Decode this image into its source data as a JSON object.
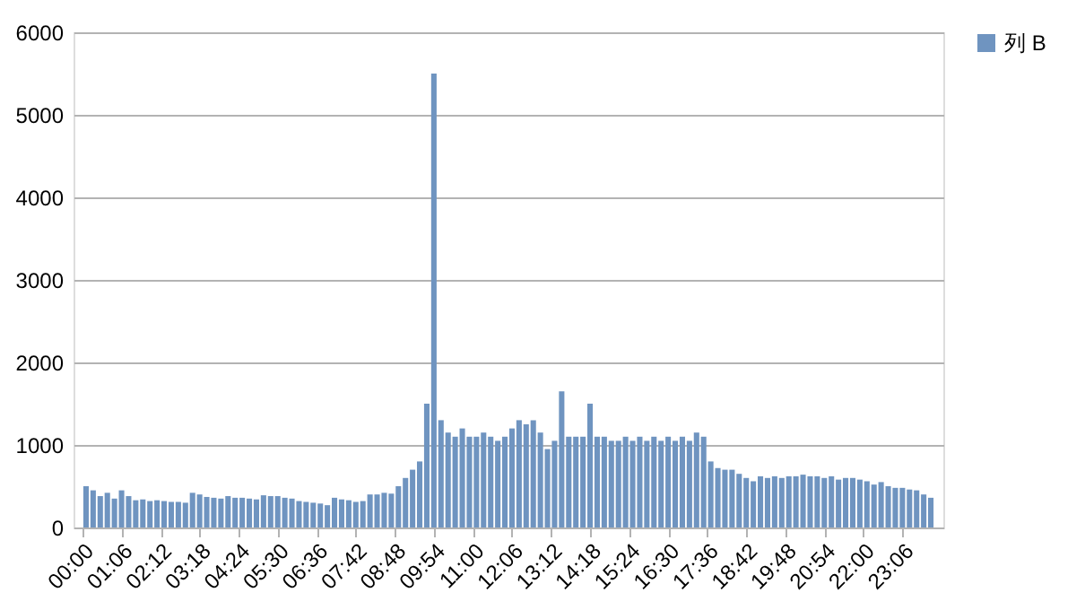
{
  "chart_data": {
    "type": "bar",
    "x": [
      0.1,
      0.3,
      0.5,
      0.7,
      0.9,
      1.1,
      1.3,
      1.5,
      1.7,
      1.9,
      2.1,
      2.3,
      2.5,
      2.7,
      2.9,
      3.1,
      3.3,
      3.5,
      3.7,
      3.9,
      4.1,
      4.3,
      4.5,
      4.7,
      4.9,
      5.1,
      5.3,
      5.5,
      5.7,
      5.9,
      6.1,
      6.3,
      6.5,
      6.7,
      6.9,
      7.1,
      7.3,
      7.5,
      7.7,
      7.9,
      8.1,
      8.3,
      8.5,
      8.7,
      8.9,
      9.1,
      9.3,
      9.5,
      9.7,
      9.9,
      10.1,
      10.3,
      10.5,
      10.7,
      10.9,
      11.1,
      11.3,
      11.5,
      11.7,
      11.9,
      12.1,
      12.3,
      12.5,
      12.7,
      12.9,
      13.1,
      13.3,
      13.5,
      13.7,
      13.9,
      14.1,
      14.3,
      14.5,
      14.7,
      14.9,
      15.1,
      15.3,
      15.5,
      15.7,
      15.9,
      16.1,
      16.3,
      16.5,
      16.7,
      16.9,
      17.1,
      17.3,
      17.5,
      17.7,
      17.9,
      18.1,
      18.3,
      18.5,
      18.7,
      18.9,
      19.1,
      19.3,
      19.5,
      19.7,
      19.9,
      20.1,
      20.3,
      20.5,
      20.7,
      20.9,
      21.1,
      21.3,
      21.5,
      21.7,
      21.9,
      22.1,
      22.3,
      22.5,
      22.7,
      22.9,
      23.1,
      23.3,
      23.5,
      23.7,
      23.9
    ],
    "series": [
      {
        "name": "列 B",
        "color": "#6f94c0",
        "values": [
          500,
          450,
          380,
          420,
          350,
          450,
          380,
          330,
          340,
          320,
          330,
          320,
          310,
          310,
          300,
          420,
          400,
          370,
          360,
          350,
          380,
          360,
          360,
          350,
          340,
          390,
          380,
          380,
          360,
          350,
          320,
          310,
          300,
          290,
          270,
          360,
          340,
          330,
          310,
          320,
          400,
          400,
          420,
          410,
          500,
          600,
          700,
          800,
          1500,
          5500,
          1300,
          1150,
          1100,
          1200,
          1100,
          1100,
          1150,
          1100,
          1050,
          1100,
          1200,
          1300,
          1250,
          1300,
          1150,
          950,
          1050,
          1650,
          1100,
          1100,
          1100,
          1500,
          1100,
          1100,
          1050,
          1050,
          1100,
          1050,
          1100,
          1050,
          1100,
          1050,
          1100,
          1050,
          1100,
          1050,
          1150,
          1100,
          800,
          720,
          700,
          700,
          650,
          600,
          560,
          620,
          600,
          620,
          600,
          620,
          620,
          640,
          620,
          620,
          600,
          620,
          580,
          600,
          600,
          580,
          560,
          520,
          550,
          500,
          480,
          480,
          460,
          450,
          400,
          360
        ]
      }
    ],
    "xlim": [
      0,
      24
    ],
    "xticks": [
      {
        "value": 0,
        "label": "00:00"
      },
      {
        "value": 1.1,
        "label": "01:06"
      },
      {
        "value": 2.2,
        "label": "02:12"
      },
      {
        "value": 3.3,
        "label": "03:18"
      },
      {
        "value": 4.4,
        "label": "04:24"
      },
      {
        "value": 5.5,
        "label": "05:30"
      },
      {
        "value": 6.6,
        "label": "06:36"
      },
      {
        "value": 7.7,
        "label": "07:42"
      },
      {
        "value": 8.8,
        "label": "08:48"
      },
      {
        "value": 9.9,
        "label": "09:54"
      },
      {
        "value": 11,
        "label": "11:00"
      },
      {
        "value": 12.1,
        "label": "12:06"
      },
      {
        "value": 13.2,
        "label": "13:12"
      },
      {
        "value": 14.3,
        "label": "14:18"
      },
      {
        "value": 15.4,
        "label": "15:24"
      },
      {
        "value": 16.5,
        "label": "16:30"
      },
      {
        "value": 17.6,
        "label": "17:36"
      },
      {
        "value": 18.7,
        "label": "18:42"
      },
      {
        "value": 19.8,
        "label": "19:48"
      },
      {
        "value": 20.9,
        "label": "20:54"
      },
      {
        "value": 22,
        "label": "22:00"
      },
      {
        "value": 23.1,
        "label": "23:06"
      }
    ],
    "ylim": [
      0,
      6000
    ],
    "yticks": [
      0,
      1000,
      2000,
      3000,
      4000,
      5000,
      6000
    ],
    "grid": "y",
    "legend": "right"
  }
}
